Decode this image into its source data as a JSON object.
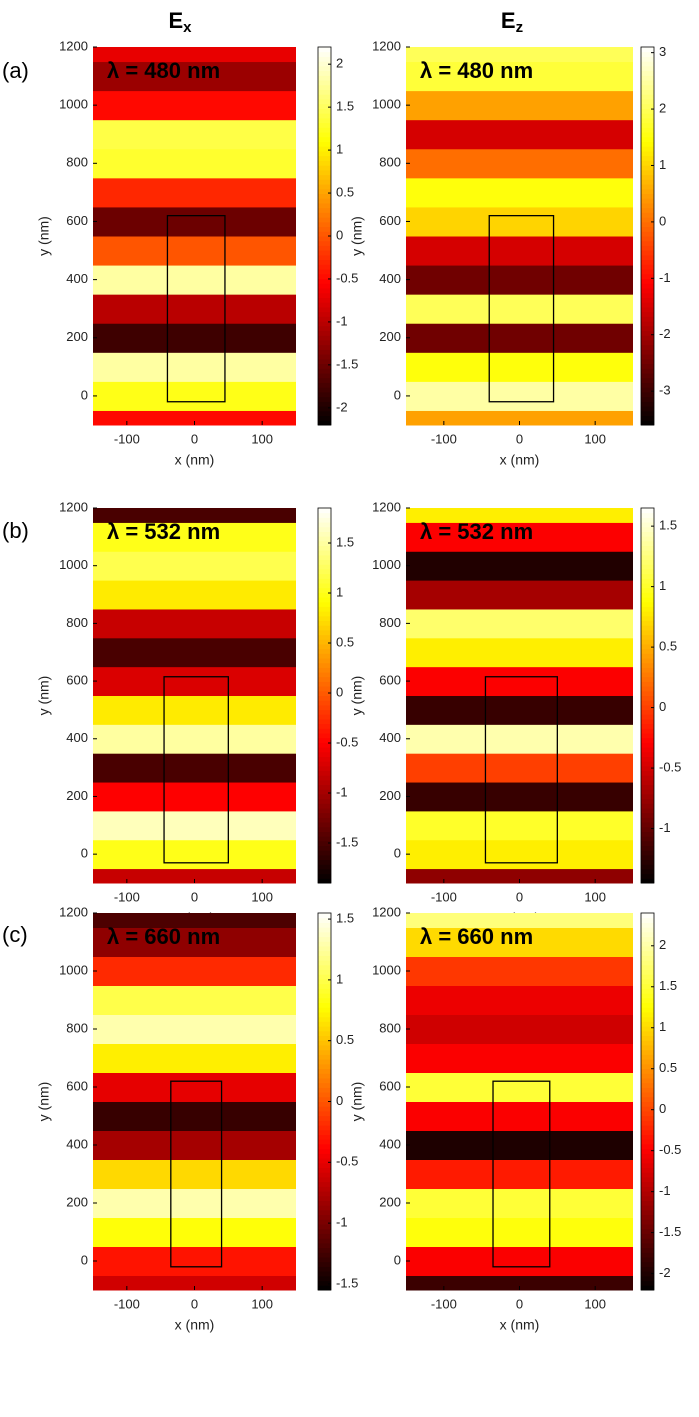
{
  "column_titles": [
    {
      "main": "E",
      "sub": "x"
    },
    {
      "main": "E",
      "sub": "z"
    }
  ],
  "row_labels": [
    "(a)",
    "(b)",
    "(c)"
  ],
  "chart_data": [
    {
      "type": "heatmap",
      "title": "λ = 480 nm",
      "xlabel": "x (nm)",
      "ylabel": "y (nm)",
      "xlim": [
        -150,
        150
      ],
      "xticks": [
        -100,
        0,
        100
      ],
      "ylim": [
        -100,
        1200
      ],
      "yticks": [
        0,
        200,
        400,
        600,
        800,
        1000,
        1200
      ],
      "y": [
        -100,
        0,
        100,
        200,
        300,
        400,
        500,
        600,
        700,
        800,
        900,
        1000,
        1100,
        1200
      ],
      "values": [
        -0.5,
        1.2,
        1.8,
        -1.8,
        -1,
        1.8,
        0,
        -1.5,
        -0.3,
        1.3,
        1.4,
        -0.5,
        -1.2,
        -0.7
      ],
      "rod": {
        "x": [
          -40,
          45
        ],
        "y": [
          -20,
          620
        ]
      },
      "clim": [
        -2.2,
        2.2
      ],
      "cticks": [
        -2,
        -1.5,
        -1,
        -0.5,
        0,
        0.5,
        1,
        1.5,
        2
      ]
    },
    {
      "type": "heatmap",
      "title": "λ = 480 nm",
      "xlabel": "x (nm)",
      "ylabel": "y (nm)",
      "xlim": [
        -150,
        150
      ],
      "xticks": [
        -100,
        0,
        100
      ],
      "ylim": [
        -100,
        1200
      ],
      "yticks": [
        0,
        200,
        400,
        600,
        800,
        1000,
        1200
      ],
      "y": [
        -100,
        0,
        100,
        200,
        300,
        400,
        500,
        600,
        700,
        800,
        900,
        1000,
        1100,
        1200
      ],
      "values": [
        0.5,
        2.5,
        1.5,
        -2.5,
        2,
        -2.5,
        -1.5,
        1,
        1.5,
        0,
        -1.5,
        0.5,
        1.8,
        2
      ],
      "rod": {
        "x": [
          -40,
          45
        ],
        "y": [
          -20,
          620
        ]
      },
      "clim": [
        -3.6,
        3.1
      ],
      "cticks": [
        -3,
        -2,
        -1,
        0,
        1,
        2,
        3
      ]
    },
    {
      "type": "heatmap",
      "title": "λ = 532 nm",
      "xlabel": "x (nm)",
      "ylabel": "y (nm)",
      "xlim": [
        -150,
        150
      ],
      "xticks": [
        -100,
        0,
        100
      ],
      "ylim": [
        -100,
        1200
      ],
      "yticks": [
        0,
        200,
        400,
        600,
        800,
        1000,
        1200
      ],
      "y": [
        -100,
        0,
        100,
        200,
        300,
        400,
        500,
        600,
        700,
        800,
        900,
        1000,
        1100,
        1200
      ],
      "values": [
        -0.8,
        1,
        1.6,
        -0.5,
        -1.5,
        1.5,
        0.8,
        -0.7,
        -1.5,
        -0.8,
        0.8,
        1.2,
        1,
        -1.5
      ],
      "rod": {
        "x": [
          -45,
          50
        ],
        "y": [
          -30,
          615
        ]
      },
      "clim": [
        -1.9,
        1.85
      ],
      "cticks": [
        -1.5,
        -1,
        -0.5,
        0,
        0.5,
        1,
        1.5
      ]
    },
    {
      "type": "heatmap",
      "title": "λ = 532 nm",
      "xlabel": "x (nm)",
      "ylabel": "y (nm)",
      "xlim": [
        -150,
        150
      ],
      "xticks": [
        -100,
        0,
        100
      ],
      "ylim": [
        -100,
        1200
      ],
      "yticks": [
        0,
        200,
        400,
        600,
        800,
        1000,
        1200
      ],
      "y": [
        -100,
        0,
        100,
        200,
        300,
        400,
        500,
        600,
        700,
        800,
        900,
        1000,
        1100,
        1200
      ],
      "values": [
        -0.8,
        0.8,
        1,
        -1.2,
        0,
        1.4,
        -1.2,
        -0.3,
        0.8,
        1.2,
        -0.7,
        -1.3,
        -0.3,
        0.8
      ],
      "rod": {
        "x": [
          -45,
          50
        ],
        "y": [
          -30,
          615
        ]
      },
      "clim": [
        -1.45,
        1.65
      ],
      "cticks": [
        -1,
        -0.5,
        0,
        0.5,
        1,
        1.5
      ]
    },
    {
      "type": "heatmap",
      "title": "λ = 660 nm",
      "xlabel": "x (nm)",
      "ylabel": "y (nm)",
      "xlim": [
        -150,
        150
      ],
      "xticks": [
        -100,
        0,
        100
      ],
      "ylim": [
        -100,
        1200
      ],
      "yticks": [
        0,
        200,
        400,
        600,
        800,
        1000,
        1200
      ],
      "y": [
        -100,
        0,
        100,
        200,
        300,
        400,
        500,
        600,
        700,
        800,
        900,
        1000,
        1100,
        1200
      ],
      "values": [
        -0.6,
        -0.3,
        0.8,
        1.3,
        0.6,
        -0.8,
        -1.3,
        -0.5,
        0.7,
        1.3,
        1,
        -0.2,
        -0.9,
        -1.2
      ],
      "rod": {
        "x": [
          -35,
          40
        ],
        "y": [
          -20,
          620
        ]
      },
      "clim": [
        -1.55,
        1.55
      ],
      "cticks": [
        -1.5,
        -1,
        -0.5,
        0,
        0.5,
        1,
        1.5
      ]
    },
    {
      "type": "heatmap",
      "title": "λ = 660 nm",
      "xlabel": "x (nm)",
      "ylabel": "y (nm)",
      "xlim": [
        -150,
        150
      ],
      "xticks": [
        -100,
        0,
        100
      ],
      "ylim": [
        -100,
        1200
      ],
      "yticks": [
        0,
        200,
        400,
        600,
        800,
        1000,
        1200
      ],
      "y": [
        -100,
        0,
        100,
        200,
        300,
        400,
        500,
        600,
        700,
        800,
        900,
        1000,
        1100,
        1200
      ],
      "values": [
        -1.8,
        -0.5,
        1.3,
        1.5,
        -0.3,
        -2,
        -0.5,
        1.5,
        -0.5,
        -0.8,
        -0.6,
        -0.1,
        1,
        1.8
      ],
      "rod": {
        "x": [
          -35,
          40
        ],
        "y": [
          -20,
          620
        ]
      },
      "clim": [
        -2.2,
        2.4
      ],
      "cticks": [
        -2,
        -1.5,
        -1,
        -0.5,
        0,
        0.5,
        1,
        1.5,
        2
      ]
    }
  ]
}
